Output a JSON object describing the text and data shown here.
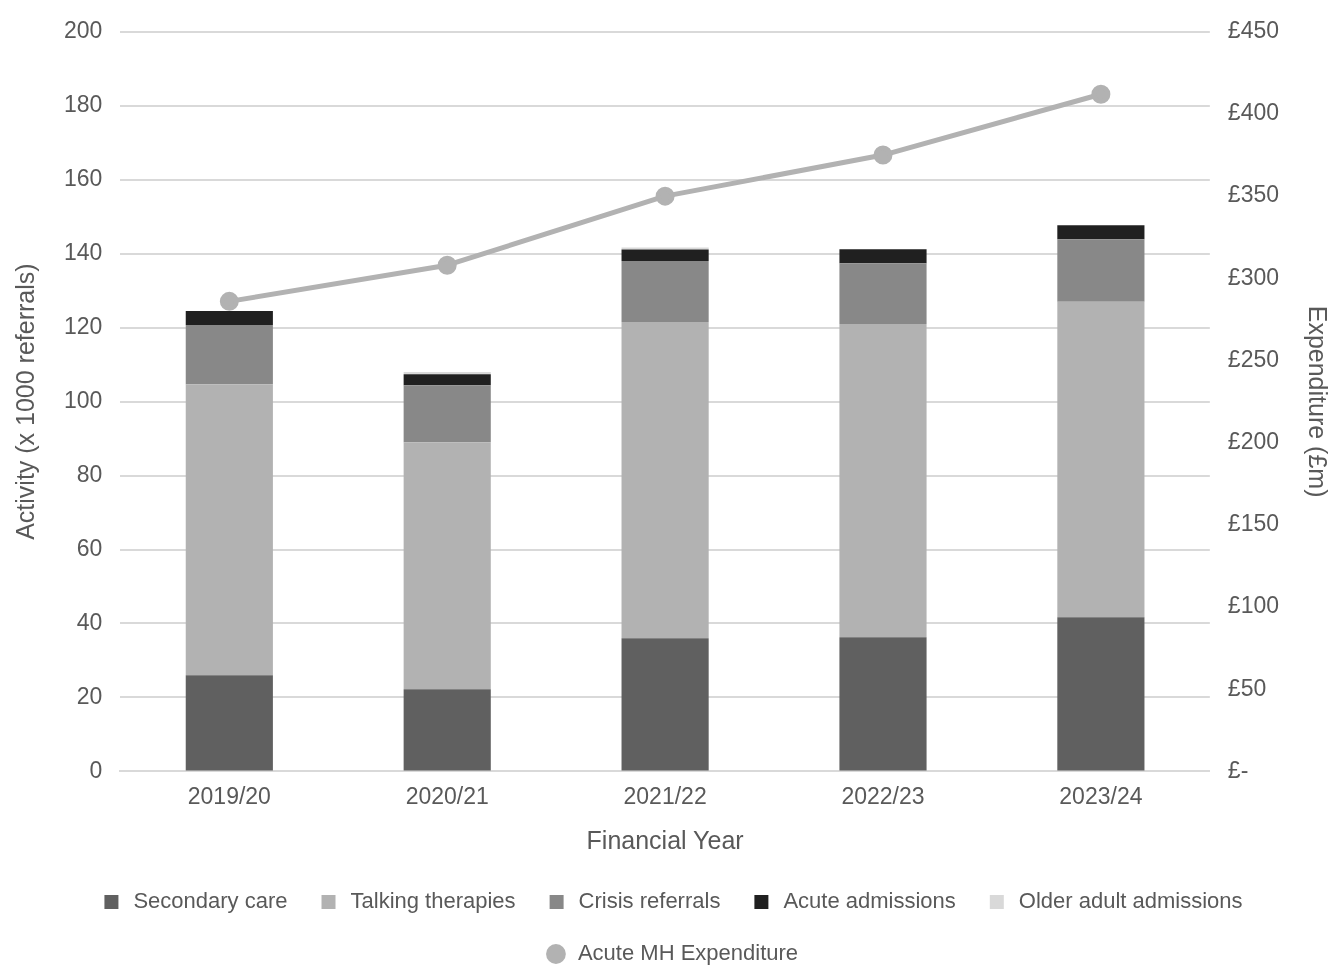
{
  "chart_data": {
    "type": "bar",
    "stacked": true,
    "xlabel": "Financial Year",
    "ylabel": "Activity (x 1000 referrals)",
    "y2label": "Expenditure (£m)",
    "categories": [
      "2019/20",
      "2020/21",
      "2021/22",
      "2022/23",
      "2023/24"
    ],
    "series": [
      {
        "name": "Secondary care",
        "color": "#606060",
        "values": [
          26,
          22.2,
          36,
          36.3,
          41.7
        ]
      },
      {
        "name": "Talking therapies",
        "color": "#b2b2b2",
        "values": [
          78.7,
          66.8,
          85.5,
          84.7,
          85.3
        ]
      },
      {
        "name": "Crisis referrals",
        "color": "#888888",
        "values": [
          16,
          15.4,
          16.5,
          16.4,
          16.9
        ]
      },
      {
        "name": "Acute admissions",
        "color": "#202020",
        "values": [
          3.8,
          3,
          3.1,
          3.8,
          3.8
        ]
      },
      {
        "name": "Older adult admissions",
        "color": "#d9d9d9",
        "values": [
          null,
          0.6,
          0.6,
          null,
          null
        ]
      },
      {
        "name": "Acute MH Expenditure",
        "type": "line",
        "axis": "y2",
        "color": "#b2b2b2",
        "values": [
          286,
          308,
          350,
          375,
          412
        ]
      }
    ],
    "ylim": [
      0,
      200
    ],
    "yticks": [
      0,
      20,
      40,
      60,
      80,
      100,
      120,
      140,
      160,
      180,
      200
    ],
    "y2lim": [
      0,
      450
    ],
    "y2ticks": [
      {
        "value": 0,
        "label": "£-"
      },
      {
        "value": 50,
        "label": "£50"
      },
      {
        "value": 100,
        "label": "£100"
      },
      {
        "value": 150,
        "label": "£150"
      },
      {
        "value": 200,
        "label": "£200"
      },
      {
        "value": 250,
        "label": "£250"
      },
      {
        "value": 300,
        "label": "£300"
      },
      {
        "value": 350,
        "label": "£350"
      },
      {
        "value": 400,
        "label": "£400"
      },
      {
        "value": 450,
        "label": "£450"
      }
    ],
    "grid": "y",
    "legend": "bottom",
    "marker": "circle",
    "line_style": "solid"
  }
}
